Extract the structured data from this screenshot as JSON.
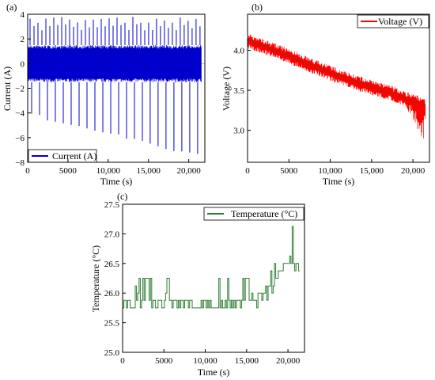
{
  "chart_data": [
    {
      "type": "line",
      "panel_label": "(a)",
      "xlabel": "Time (s)",
      "ylabel": "Current (A)",
      "xlim": [
        0,
        22000
      ],
      "ylim": [
        -8,
        4
      ],
      "xticks": [
        0,
        5000,
        10000,
        15000,
        20000
      ],
      "xtick_labels": [
        "0",
        "5000",
        "10,000",
        "15,000",
        "20,000"
      ],
      "yticks": [
        -8,
        -6,
        -4,
        -2,
        0,
        2,
        4
      ],
      "ytick_labels": [
        "−8",
        "−6",
        "−4",
        "−2",
        "0",
        "2",
        "4"
      ],
      "legend": "bottom-left",
      "series": [
        {
          "name": "Current (A)",
          "color": "#0000cc",
          "cycles": 22,
          "x_range": [
            0,
            21600
          ],
          "band": [
            -1.5,
            1.5
          ],
          "peak_max": [
            3.3,
            3.8
          ],
          "peak_min_start": -4.0,
          "peak_min_end": -7.3
        }
      ]
    },
    {
      "type": "line",
      "panel_label": "(b)",
      "xlabel": "Time (s)",
      "ylabel": "Voltage (V)",
      "xlim": [
        0,
        22000
      ],
      "ylim": [
        2.6,
        4.45
      ],
      "xticks": [
        0,
        5000,
        10000,
        15000,
        20000
      ],
      "xtick_labels": [
        "0",
        "5000",
        "10,000",
        "15,000",
        "20,000"
      ],
      "yticks": [
        3.0,
        3.5,
        4.0
      ],
      "ytick_labels": [
        "3.0",
        "3.5",
        "4.0"
      ],
      "legend": "top-right",
      "series": [
        {
          "name": "Voltage (V)",
          "color": "#ff0000",
          "center_color": "#7a3a00",
          "x": [
            0,
            2000,
            5000,
            8000,
            11000,
            14000,
            17000,
            19000,
            20500,
            21500
          ],
          "y": [
            4.12,
            4.05,
            3.93,
            3.8,
            3.68,
            3.57,
            3.48,
            3.4,
            3.35,
            3.3
          ],
          "min_end": 2.92
        }
      ]
    },
    {
      "type": "line",
      "panel_label": "(c)",
      "xlabel": "Time (s)",
      "ylabel": "Temperature (°C)",
      "xlim": [
        0,
        22000
      ],
      "ylim": [
        25.0,
        27.5
      ],
      "xticks": [
        0,
        5000,
        10000,
        15000,
        20000
      ],
      "xtick_labels": [
        "0",
        "5000",
        "10,000",
        "15,000",
        "20,000"
      ],
      "yticks": [
        25.0,
        25.5,
        26.0,
        26.5,
        27.0,
        27.5
      ],
      "ytick_labels": [
        "25.0",
        "25.5",
        "26.0",
        "26.5",
        "27.0",
        "27.5"
      ],
      "legend": "top-right",
      "series": [
        {
          "name": "Temperature (°C)",
          "color": "#2e7d32",
          "steps": [
            25.62,
            25.75,
            25.88,
            26.0,
            26.12,
            26.25
          ],
          "x": [
            0,
            4000,
            8000,
            12000,
            15000,
            16500,
            17500,
            18500,
            19500,
            20500,
            21500
          ],
          "base": [
            25.85,
            25.88,
            25.85,
            25.82,
            25.88,
            25.95,
            26.05,
            26.2,
            26.45,
            26.55,
            26.4
          ],
          "max": [
            26.12,
            26.25,
            26.25,
            26.25,
            26.25,
            26.25,
            26.3,
            26.5,
            26.85,
            27.1,
            26.9
          ]
        }
      ]
    }
  ]
}
